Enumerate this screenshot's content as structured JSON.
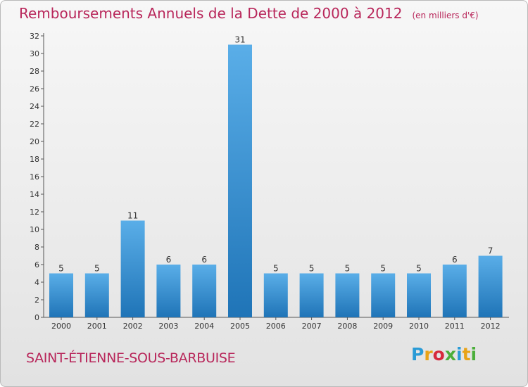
{
  "title": "Remboursements Annuels de la Dette de 2000 à 2012",
  "unit": "(en milliers d'€)",
  "commune": "SAINT-ÉTIENNE-SOUS-BARBUISE",
  "logo": {
    "text": "Proxiti",
    "letters": [
      "P",
      "r",
      "o",
      "x",
      "i",
      "t",
      "i"
    ],
    "colors": [
      "#2a9bd6",
      "#e8a317",
      "#d62a3d",
      "#4bae3a",
      "#2a9bd6",
      "#e8a317",
      "#4bae3a"
    ]
  },
  "colors": {
    "title": "#b8265a",
    "bar_light": "#5aaee8",
    "bar_dark": "#1f74b7",
    "text": "#333333"
  },
  "chart_data": {
    "type": "bar",
    "title": "Remboursements Annuels de la Dette de 2000 à 2012",
    "ylabel": "en milliers d'€",
    "xlabel": "",
    "categories": [
      "2000",
      "2001",
      "2002",
      "2003",
      "2004",
      "2005",
      "2006",
      "2007",
      "2008",
      "2009",
      "2010",
      "2011",
      "2012"
    ],
    "values": [
      5,
      5,
      11,
      6,
      6,
      31,
      5,
      5,
      5,
      5,
      5,
      6,
      7
    ],
    "ylim": [
      0,
      32
    ],
    "yticks": [
      0,
      2,
      4,
      6,
      8,
      10,
      12,
      14,
      16,
      18,
      20,
      22,
      24,
      26,
      28,
      30,
      32
    ],
    "grid": false,
    "legend": "none"
  }
}
